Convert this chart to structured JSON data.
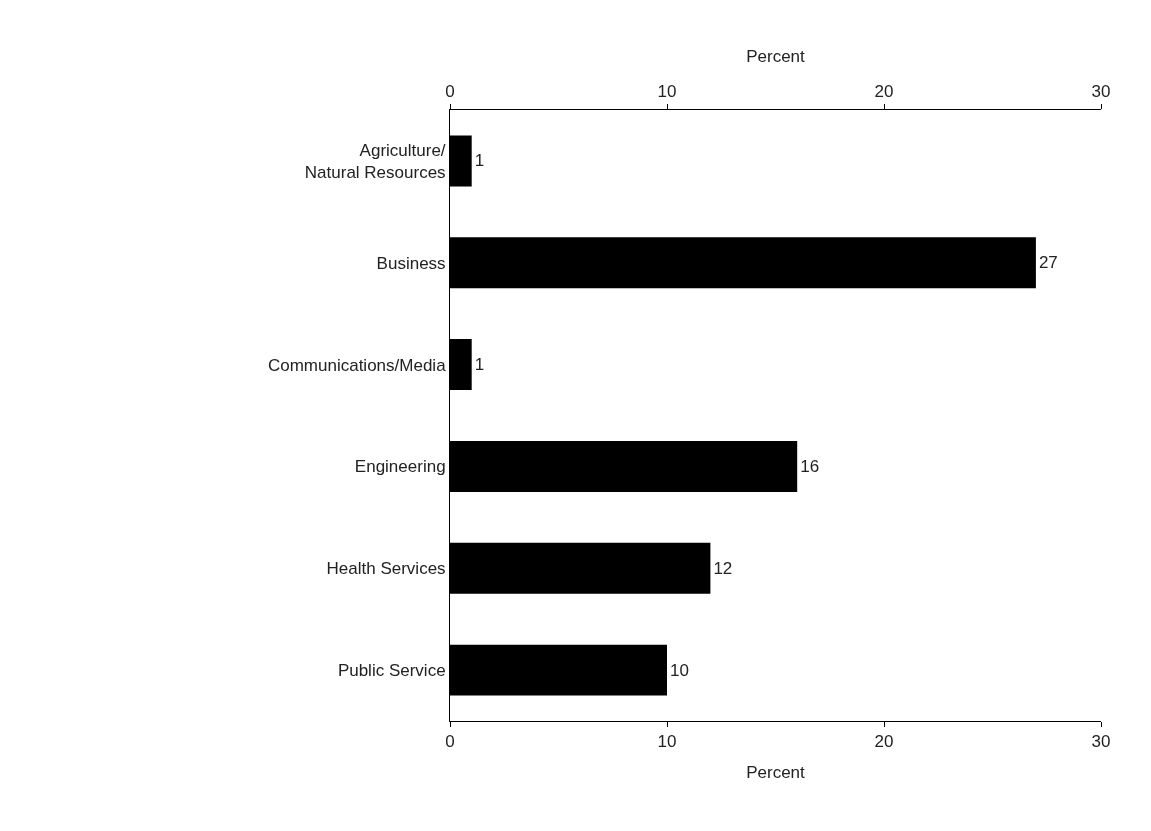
{
  "chart_data": {
    "type": "bar",
    "orientation": "horizontal",
    "categories": [
      "Agriculture/\nNatural Resources",
      "Business",
      "Communications/Media",
      "Engineering",
      "Health Services",
      "Public Service"
    ],
    "values": [
      1,
      27,
      1,
      16,
      12,
      10
    ],
    "color": "#000000",
    "data_labels": true,
    "xlabel": "Percent",
    "xlim": [
      0,
      30
    ],
    "xticks": [
      0,
      10,
      20,
      30
    ],
    "x2label": "Percent",
    "x2lim": [
      0,
      30
    ],
    "x2ticks": [
      0,
      10,
      20,
      30
    ],
    "grid": false,
    "legend": false
  }
}
